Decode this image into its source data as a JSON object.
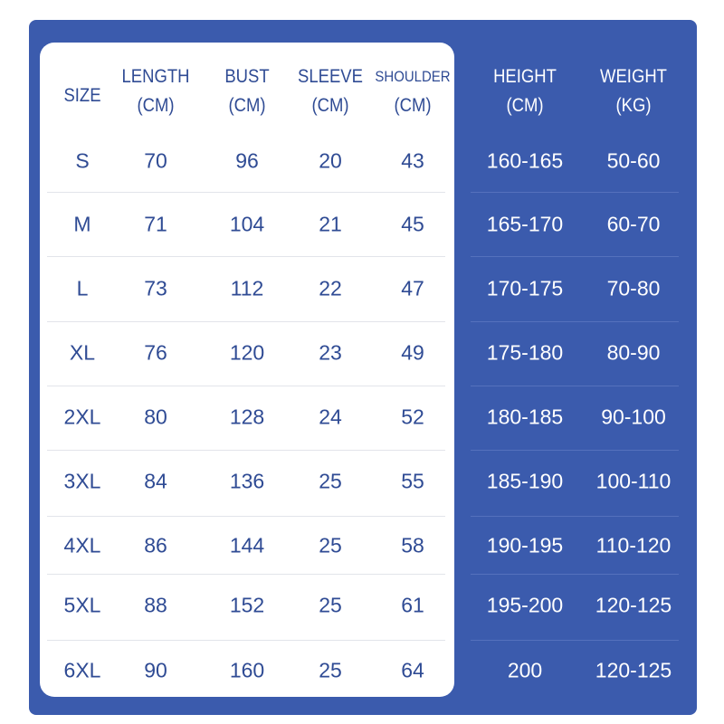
{
  "colors": {
    "panel": "#3b5bad",
    "card": "#ffffff",
    "text_blue": "#2f4b94",
    "text_white": "#ffffff"
  },
  "headers": [
    {
      "line1": "SIZE",
      "line2": ""
    },
    {
      "line1": "LENGTH",
      "line2": "(CM)"
    },
    {
      "line1": "BUST",
      "line2": "(CM)"
    },
    {
      "line1": "SLEEVE",
      "line2": "(CM)"
    },
    {
      "line1": "SHOULDER",
      "line2": "(CM)"
    },
    {
      "line1": "HEIGHT",
      "line2": "(CM)"
    },
    {
      "line1": "WEIGHT",
      "line2": "(KG)"
    }
  ],
  "rows": [
    [
      "S",
      "70",
      "96",
      "20",
      "43",
      "160-165",
      "50-60"
    ],
    [
      "M",
      "71",
      "104",
      "21",
      "45",
      "165-170",
      "60-70"
    ],
    [
      "L",
      "73",
      "112",
      "22",
      "47",
      "170-175",
      "70-80"
    ],
    [
      "XL",
      "76",
      "120",
      "23",
      "49",
      "175-180",
      "80-90"
    ],
    [
      "2XL",
      "80",
      "128",
      "24",
      "52",
      "180-185",
      "90-100"
    ],
    [
      "3XL",
      "84",
      "136",
      "25",
      "55",
      "185-190",
      "100-110"
    ],
    [
      "4XL",
      "86",
      "144",
      "25",
      "58",
      "190-195",
      "110-120"
    ],
    [
      "5XL",
      "88",
      "152",
      "25",
      "61",
      "195-200",
      "120-125"
    ],
    [
      "6XL",
      "90",
      "160",
      "25",
      "64",
      "200",
      "120-125"
    ]
  ]
}
